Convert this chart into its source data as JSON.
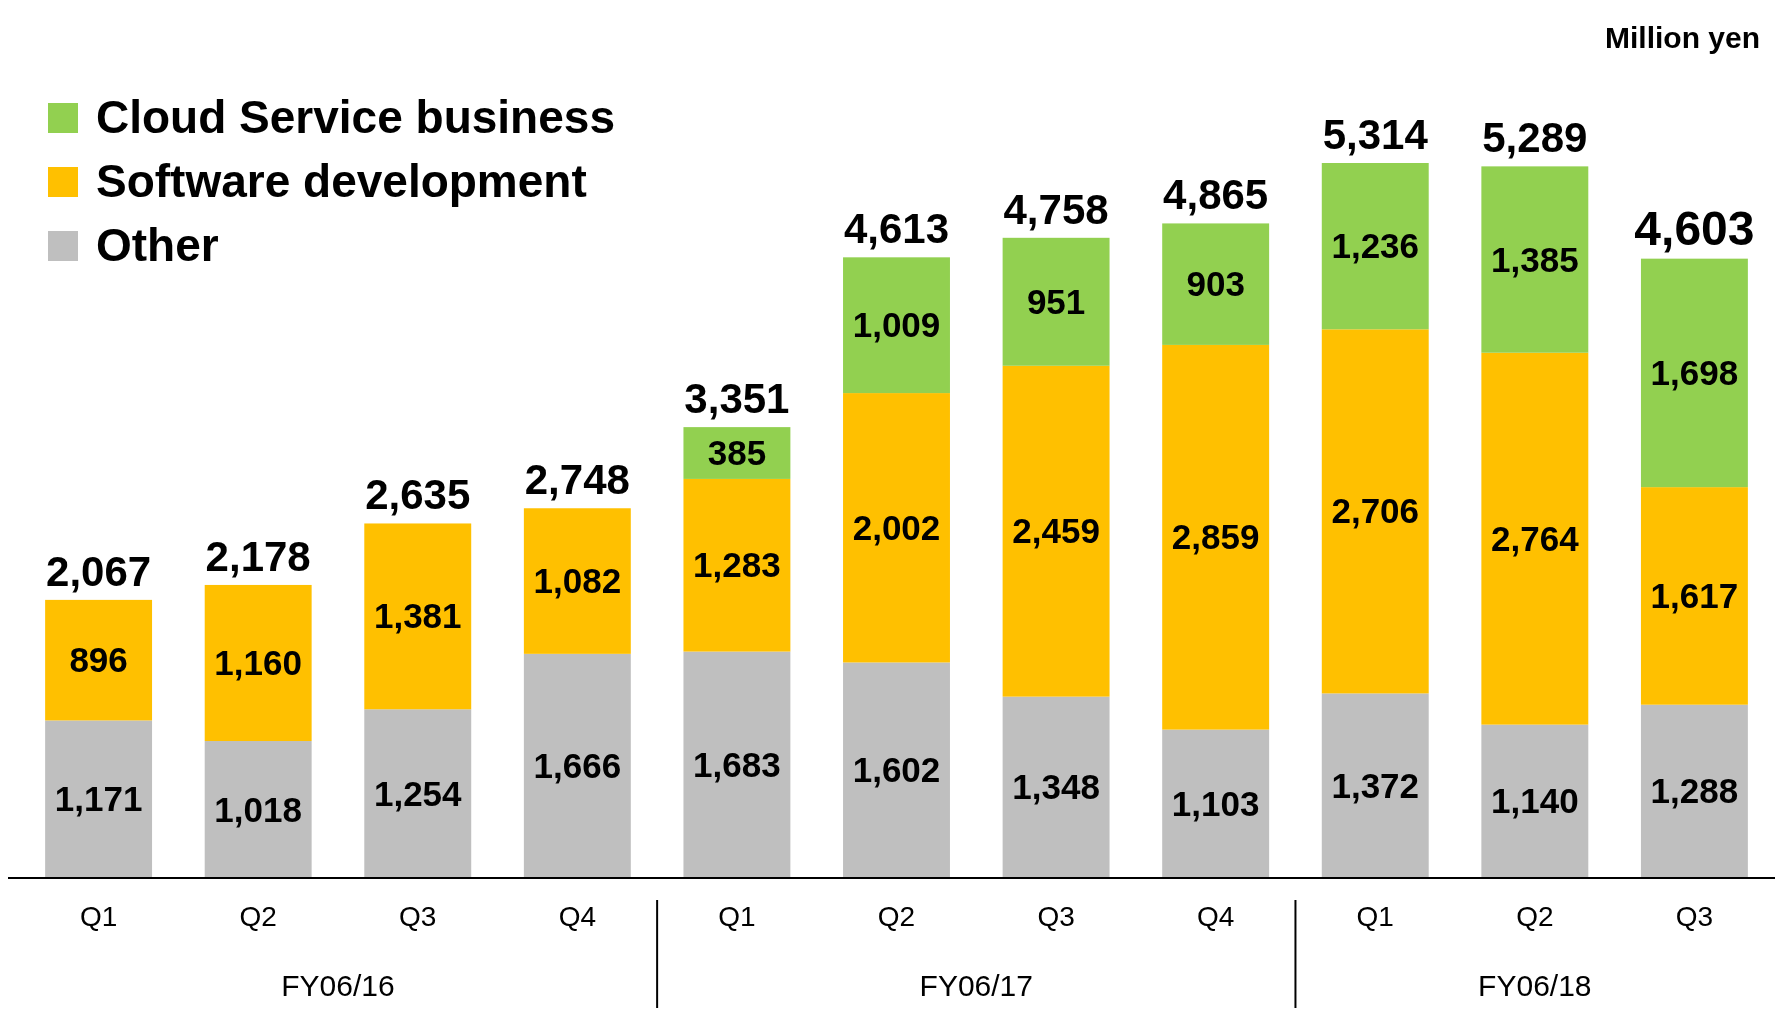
{
  "chart_data": {
    "type": "bar",
    "stacked": true,
    "legend": "top left",
    "ylabel": "Million yen",
    "categories": [
      "Q1",
      "Q2",
      "Q3",
      "Q4",
      "Q1",
      "Q2",
      "Q3",
      "Q4",
      "Q1",
      "Q2",
      "Q3"
    ],
    "series": [
      {
        "name": "Other",
        "color": "#bfbfbf",
        "values": [
          1171,
          1018,
          1254,
          1666,
          1683,
          1602,
          1348,
          1103,
          1372,
          1140,
          1288
        ],
        "value_labels": [
          "1,171",
          "1,018",
          "1,254",
          "1,666",
          "1,683",
          "1,602",
          "1,348",
          "1,103",
          "1,372",
          "1,140",
          "1,288"
        ]
      },
      {
        "name": "Software development",
        "color": "#ffc000",
        "values": [
          896,
          1160,
          1381,
          1082,
          1283,
          2002,
          2459,
          2859,
          2706,
          2764,
          1617
        ],
        "value_labels": [
          "896",
          "1,160",
          "1,381",
          "1,082",
          "1,283",
          "2,002",
          "2,459",
          "2,859",
          "2,706",
          "2,764",
          "1,617"
        ]
      },
      {
        "name": "Cloud Service business",
        "color": "#92d050",
        "values": [
          null,
          null,
          null,
          null,
          385,
          1009,
          951,
          903,
          1236,
          1385,
          1698
        ],
        "value_labels": [
          null,
          null,
          null,
          null,
          "385",
          "1,009",
          "951",
          "903",
          "1,236",
          "1,385",
          "1,698"
        ]
      }
    ],
    "totals": [
      "2,067",
      "2,178",
      "2,635",
      "2,748",
      "3,351",
      "4,613",
      "4,758",
      "4,865",
      "5,314",
      "5,289",
      "4,603"
    ],
    "annotations": [
      "FY06/16",
      "FY06/17",
      "FY06/18"
    ]
  }
}
